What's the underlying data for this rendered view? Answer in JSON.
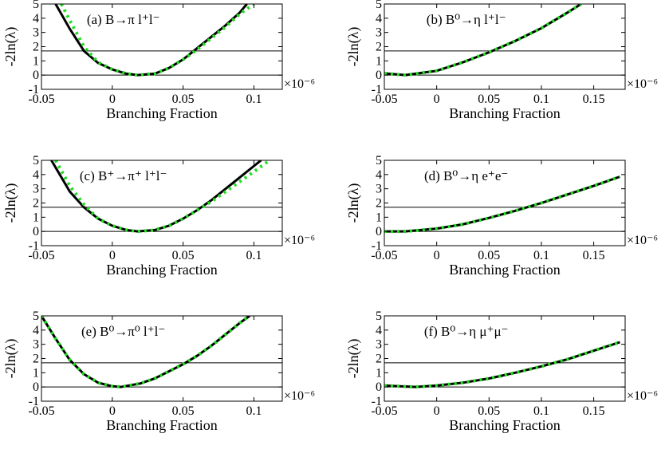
{
  "chart_data": [
    {
      "type": "line",
      "label": "(a) B→π l⁺l⁻",
      "xlabel": "Branching Fraction",
      "ylabel": "-2ln(λ)",
      "x_multiplier": "×10⁻⁶",
      "xlim": [
        -0.05,
        0.12
      ],
      "ylim": [
        -1,
        5
      ],
      "xticks": [
        "-0.05",
        "0",
        "0.05",
        "0.1"
      ],
      "yticks": [
        "-1",
        "0",
        "1",
        "2",
        "3",
        "4",
        "5"
      ],
      "reference_lines_y": [
        0,
        1.7
      ],
      "series": [
        {
          "style": "solid",
          "color": "#000000",
          "x": [
            -0.04,
            -0.03,
            -0.02,
            -0.01,
            0.0,
            0.01,
            0.018,
            0.03,
            0.04,
            0.05,
            0.06,
            0.07,
            0.08,
            0.09,
            0.095
          ],
          "y": [
            5.0,
            3.25,
            1.7,
            0.85,
            0.4,
            0.1,
            0.0,
            0.1,
            0.5,
            1.1,
            1.9,
            2.7,
            3.5,
            4.4,
            5.0
          ]
        },
        {
          "style": "dotted",
          "color": "#22dd22",
          "x": [
            -0.036,
            -0.03,
            -0.02,
            -0.01,
            0.0,
            0.01,
            0.018,
            0.03,
            0.04,
            0.05,
            0.06,
            0.07,
            0.08,
            0.09,
            0.1
          ],
          "y": [
            5.0,
            3.85,
            2.0,
            0.9,
            0.4,
            0.1,
            0.0,
            0.1,
            0.5,
            1.1,
            1.8,
            2.6,
            3.4,
            4.3,
            5.0
          ]
        }
      ]
    },
    {
      "type": "line",
      "label": "(b) B⁰→η l⁺l⁻",
      "xlabel": "Branching Fraction",
      "ylabel": "-2ln(λ)",
      "x_multiplier": "×10⁻⁶",
      "xlim": [
        -0.05,
        0.18
      ],
      "ylim": [
        -1,
        5
      ],
      "xticks": [
        "-0.05",
        "0",
        "0.05",
        "0.1",
        "0.15"
      ],
      "yticks": [
        "-1",
        "0",
        "1",
        "2",
        "3",
        "4",
        "5"
      ],
      "reference_lines_y": [
        0,
        1.7
      ],
      "series": [
        {
          "style": "solid",
          "color": "#000000",
          "x": [
            -0.05,
            -0.03,
            0.0,
            0.025,
            0.05,
            0.075,
            0.1,
            0.125,
            0.138
          ],
          "y": [
            0.12,
            0.0,
            0.3,
            0.9,
            1.6,
            2.4,
            3.3,
            4.4,
            5.0
          ]
        },
        {
          "style": "dotted",
          "color": "#22dd22",
          "x": [
            -0.05,
            -0.03,
            0.0,
            0.025,
            0.05,
            0.075,
            0.1,
            0.125,
            0.138
          ],
          "y": [
            0.12,
            0.0,
            0.3,
            0.9,
            1.6,
            2.4,
            3.3,
            4.4,
            5.0
          ]
        }
      ]
    },
    {
      "type": "line",
      "label": "(c) B⁺→π⁺ l⁺l⁻",
      "xlabel": "Branching Fraction",
      "ylabel": "-2ln(λ)",
      "x_multiplier": "×10⁻⁶",
      "xlim": [
        -0.05,
        0.12
      ],
      "ylim": [
        -1,
        5
      ],
      "xticks": [
        "-0.05",
        "0",
        "0.05",
        "0.1"
      ],
      "yticks": [
        "-1",
        "0",
        "1",
        "2",
        "3",
        "4",
        "5"
      ],
      "reference_lines_y": [
        0,
        1.7
      ],
      "series": [
        {
          "style": "solid",
          "color": "#000000",
          "x": [
            -0.043,
            -0.03,
            -0.02,
            -0.01,
            0.0,
            0.01,
            0.018,
            0.03,
            0.04,
            0.05,
            0.06,
            0.07,
            0.08,
            0.09,
            0.1,
            0.105
          ],
          "y": [
            5.0,
            2.8,
            1.7,
            0.9,
            0.4,
            0.1,
            0.0,
            0.1,
            0.4,
            0.9,
            1.5,
            2.2,
            3.0,
            3.8,
            4.6,
            5.0
          ]
        },
        {
          "style": "dotted",
          "color": "#22dd22",
          "x": [
            -0.04,
            -0.03,
            -0.02,
            -0.01,
            0.0,
            0.01,
            0.018,
            0.03,
            0.04,
            0.05,
            0.06,
            0.07,
            0.08,
            0.09,
            0.1,
            0.111
          ],
          "y": [
            5.0,
            3.2,
            1.9,
            0.9,
            0.4,
            0.1,
            0.0,
            0.1,
            0.4,
            0.9,
            1.5,
            2.1,
            2.8,
            3.5,
            4.2,
            5.0
          ]
        }
      ]
    },
    {
      "type": "line",
      "label": "(d) B⁰→η e⁺e⁻",
      "xlabel": "Branching Fraction",
      "ylabel": "-2ln(λ)",
      "x_multiplier": "×10⁻⁶",
      "xlim": [
        -0.05,
        0.18
      ],
      "ylim": [
        -1,
        5
      ],
      "xticks": [
        "-0.05",
        "0",
        "0.05",
        "0.1",
        "0.15"
      ],
      "yticks": [
        "-1",
        "0",
        "1",
        "2",
        "3",
        "4",
        "5"
      ],
      "reference_lines_y": [
        0,
        1.7
      ],
      "series": [
        {
          "style": "solid",
          "color": "#000000",
          "x": [
            -0.05,
            -0.03,
            0.0,
            0.025,
            0.05,
            0.075,
            0.1,
            0.125,
            0.15,
            0.175
          ],
          "y": [
            0.0,
            0.0,
            0.2,
            0.5,
            0.95,
            1.45,
            2.0,
            2.6,
            3.2,
            3.85
          ]
        },
        {
          "style": "dotted",
          "color": "#22dd22",
          "x": [
            -0.05,
            -0.03,
            0.0,
            0.025,
            0.05,
            0.075,
            0.1,
            0.125,
            0.15,
            0.175
          ],
          "y": [
            0.0,
            0.0,
            0.2,
            0.5,
            0.95,
            1.45,
            2.0,
            2.6,
            3.2,
            3.85
          ]
        }
      ]
    },
    {
      "type": "line",
      "label": "(e) B⁰→π⁰ l⁺l⁻",
      "xlabel": "Branching Fraction",
      "ylabel": "-2ln(λ)",
      "x_multiplier": "×10⁻⁶",
      "xlim": [
        -0.05,
        0.12
      ],
      "ylim": [
        -1,
        5
      ],
      "xticks": [
        "-0.05",
        "0",
        "0.05",
        "0.1"
      ],
      "yticks": [
        "-1",
        "0",
        "1",
        "2",
        "3",
        "4",
        "5"
      ],
      "reference_lines_y": [
        0,
        1.7
      ],
      "series": [
        {
          "style": "solid",
          "color": "#000000",
          "x": [
            -0.05,
            -0.04,
            -0.03,
            -0.02,
            -0.01,
            0.0,
            0.006,
            0.02,
            0.03,
            0.04,
            0.05,
            0.06,
            0.07,
            0.08,
            0.09,
            0.097
          ],
          "y": [
            5.0,
            3.4,
            1.9,
            0.9,
            0.3,
            0.05,
            0.0,
            0.25,
            0.6,
            1.1,
            1.6,
            2.2,
            2.9,
            3.7,
            4.5,
            5.0
          ]
        },
        {
          "style": "dotted",
          "color": "#22dd22",
          "x": [
            -0.05,
            -0.04,
            -0.03,
            -0.02,
            -0.01,
            0.0,
            0.006,
            0.02,
            0.03,
            0.04,
            0.05,
            0.06,
            0.07,
            0.08,
            0.09,
            0.097
          ],
          "y": [
            5.0,
            3.4,
            1.9,
            0.9,
            0.3,
            0.05,
            0.0,
            0.25,
            0.6,
            1.1,
            1.6,
            2.2,
            2.9,
            3.7,
            4.5,
            5.0
          ]
        }
      ]
    },
    {
      "type": "line",
      "label": "(f) B⁰→η μ⁺μ⁻",
      "xlabel": "Branching Fraction",
      "ylabel": "-2ln(λ)",
      "x_multiplier": "×10⁻⁶",
      "xlim": [
        -0.05,
        0.18
      ],
      "ylim": [
        -1,
        5
      ],
      "xticks": [
        "-0.05",
        "0",
        "0.05",
        "0.1",
        "0.15"
      ],
      "yticks": [
        "-1",
        "0",
        "1",
        "2",
        "3",
        "4",
        "5"
      ],
      "reference_lines_y": [
        0,
        1.7
      ],
      "series": [
        {
          "style": "solid",
          "color": "#000000",
          "x": [
            -0.05,
            -0.02,
            0.0,
            0.025,
            0.05,
            0.075,
            0.1,
            0.125,
            0.15,
            0.175
          ],
          "y": [
            0.1,
            0.0,
            0.1,
            0.3,
            0.6,
            1.0,
            1.45,
            1.95,
            2.55,
            3.15
          ]
        },
        {
          "style": "dotted",
          "color": "#22dd22",
          "x": [
            -0.05,
            -0.02,
            0.0,
            0.025,
            0.05,
            0.075,
            0.1,
            0.125,
            0.15,
            0.175
          ],
          "y": [
            0.1,
            0.0,
            0.1,
            0.3,
            0.6,
            1.0,
            1.45,
            1.95,
            2.55,
            3.15
          ]
        }
      ]
    }
  ]
}
